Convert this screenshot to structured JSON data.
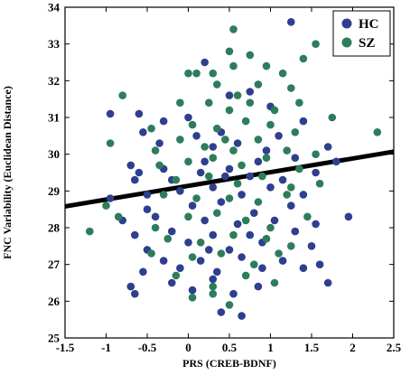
{
  "chart_data": {
    "type": "scatter",
    "title": "",
    "xlabel": "PRS (CREB-BDNF)",
    "ylabel": "FNC Variability (Euclidean Distance)",
    "xlim": [
      -1.5,
      2.5
    ],
    "ylim": [
      25,
      34
    ],
    "xticks": [
      -1.5,
      -1,
      -0.5,
      0,
      0.5,
      1,
      1.5,
      2,
      2.5
    ],
    "xtick_labels": [
      "-1.5",
      "-1",
      "-0.5",
      "0",
      "0.5",
      "1",
      "1.5",
      "2",
      "2.5"
    ],
    "yticks": [
      25,
      26,
      27,
      28,
      29,
      30,
      31,
      32,
      33,
      34
    ],
    "ytick_labels": [
      "25",
      "26",
      "27",
      "28",
      "29",
      "30",
      "31",
      "32",
      "33",
      "34"
    ],
    "grid": false,
    "legend_position": "top-right",
    "fit_line": {
      "x": [
        -1.5,
        2.5
      ],
      "y": [
        28.58,
        30.07
      ],
      "color": "#000000"
    },
    "series": [
      {
        "name": "HC",
        "color": "#2e3f8f",
        "points": [
          [
            1.25,
            33.6
          ],
          [
            -0.95,
            31.1
          ],
          [
            -0.6,
            31.1
          ],
          [
            0.2,
            32.5
          ],
          [
            0.5,
            31.6
          ],
          [
            0.75,
            31.7
          ],
          [
            -0.3,
            30.9
          ],
          [
            0.0,
            31.0
          ],
          [
            0.4,
            30.6
          ],
          [
            1.0,
            31.3
          ],
          [
            1.4,
            30.9
          ],
          [
            -0.55,
            30.6
          ],
          [
            0.1,
            30.5
          ],
          [
            0.6,
            30.3
          ],
          [
            1.1,
            30.5
          ],
          [
            -0.35,
            30.3
          ],
          [
            0.3,
            30.2
          ],
          [
            1.7,
            30.2
          ],
          [
            -0.7,
            29.7
          ],
          [
            -0.3,
            29.6
          ],
          [
            0.2,
            29.8
          ],
          [
            0.5,
            29.6
          ],
          [
            0.85,
            29.8
          ],
          [
            1.3,
            29.9
          ],
          [
            -0.65,
            29.3
          ],
          [
            -0.2,
            29.3
          ],
          [
            0.15,
            29.5
          ],
          [
            0.45,
            29.4
          ],
          [
            0.75,
            29.4
          ],
          [
            1.15,
            29.3
          ],
          [
            1.55,
            29.5
          ],
          [
            -0.95,
            28.8
          ],
          [
            -0.5,
            28.9
          ],
          [
            -0.1,
            29.0
          ],
          [
            0.3,
            29.1
          ],
          [
            0.65,
            28.9
          ],
          [
            1.0,
            29.1
          ],
          [
            1.4,
            28.9
          ],
          [
            -0.5,
            28.5
          ],
          [
            0.05,
            28.6
          ],
          [
            0.4,
            28.7
          ],
          [
            0.8,
            28.4
          ],
          [
            1.25,
            28.6
          ],
          [
            -0.8,
            28.2
          ],
          [
            -0.4,
            28.3
          ],
          [
            0.2,
            28.2
          ],
          [
            0.6,
            28.1
          ],
          [
            1.05,
            28.2
          ],
          [
            1.55,
            28.1
          ],
          [
            -0.65,
            27.8
          ],
          [
            -0.2,
            27.9
          ],
          [
            0.3,
            27.8
          ],
          [
            0.75,
            27.8
          ],
          [
            1.3,
            27.9
          ],
          [
            -0.5,
            27.4
          ],
          [
            0.0,
            27.6
          ],
          [
            0.5,
            27.4
          ],
          [
            0.9,
            27.6
          ],
          [
            1.5,
            27.5
          ],
          [
            -0.3,
            27.1
          ],
          [
            0.15,
            27.1
          ],
          [
            0.65,
            27.2
          ],
          [
            1.15,
            27.1
          ],
          [
            -0.55,
            26.8
          ],
          [
            -0.1,
            26.9
          ],
          [
            0.35,
            26.8
          ],
          [
            0.9,
            26.9
          ],
          [
            1.4,
            26.9
          ],
          [
            -0.7,
            26.4
          ],
          [
            -0.2,
            26.5
          ],
          [
            0.3,
            26.6
          ],
          [
            0.85,
            26.4
          ],
          [
            1.6,
            27.0
          ],
          [
            -0.65,
            26.2
          ],
          [
            0.05,
            26.3
          ],
          [
            0.55,
            26.2
          ],
          [
            1.7,
            26.5
          ],
          [
            0.4,
            25.7
          ],
          [
            0.65,
            25.6
          ],
          [
            1.95,
            28.3
          ],
          [
            1.8,
            29.8
          ],
          [
            -0.6,
            29.5
          ],
          [
            0.95,
            30.1
          ],
          [
            0.25,
            27.4
          ]
        ]
      },
      {
        "name": "SZ",
        "color": "#2e7d5a",
        "points": [
          [
            0.55,
            33.4
          ],
          [
            0.5,
            32.8
          ],
          [
            0.75,
            32.7
          ],
          [
            1.55,
            33.0
          ],
          [
            2.0,
            32.8
          ],
          [
            0.3,
            32.2
          ],
          [
            0.55,
            32.4
          ],
          [
            0.95,
            32.4
          ],
          [
            1.15,
            32.2
          ],
          [
            1.4,
            32.6
          ],
          [
            -0.8,
            31.6
          ],
          [
            0.0,
            32.2
          ],
          [
            0.1,
            32.2
          ],
          [
            0.35,
            31.9
          ],
          [
            0.6,
            31.6
          ],
          [
            0.85,
            31.9
          ],
          [
            1.25,
            31.8
          ],
          [
            -0.1,
            31.4
          ],
          [
            0.25,
            31.4
          ],
          [
            0.5,
            31.2
          ],
          [
            0.75,
            31.4
          ],
          [
            1.05,
            31.2
          ],
          [
            1.35,
            31.4
          ],
          [
            -0.95,
            30.3
          ],
          [
            -0.45,
            30.7
          ],
          [
            0.05,
            30.8
          ],
          [
            0.35,
            30.7
          ],
          [
            0.7,
            30.9
          ],
          [
            1.0,
            30.8
          ],
          [
            1.3,
            30.6
          ],
          [
            -0.4,
            30.1
          ],
          [
            -0.1,
            30.4
          ],
          [
            0.2,
            30.2
          ],
          [
            0.55,
            30.1
          ],
          [
            0.85,
            30.4
          ],
          [
            1.2,
            30.1
          ],
          [
            1.55,
            30.0
          ],
          [
            -0.35,
            29.7
          ],
          [
            0.0,
            29.8
          ],
          [
            0.3,
            29.9
          ],
          [
            0.65,
            29.7
          ],
          [
            0.95,
            29.9
          ],
          [
            1.35,
            29.6
          ],
          [
            -0.15,
            29.3
          ],
          [
            0.25,
            29.4
          ],
          [
            0.6,
            29.2
          ],
          [
            0.9,
            29.4
          ],
          [
            1.25,
            29.1
          ],
          [
            1.6,
            29.2
          ],
          [
            -0.3,
            28.9
          ],
          [
            0.1,
            28.8
          ],
          [
            0.5,
            28.8
          ],
          [
            0.85,
            28.7
          ],
          [
            1.2,
            28.9
          ],
          [
            -0.85,
            28.3
          ],
          [
            -0.4,
            28.0
          ],
          [
            0.0,
            28.3
          ],
          [
            0.35,
            28.4
          ],
          [
            0.7,
            28.2
          ],
          [
            1.0,
            28.0
          ],
          [
            1.45,
            28.3
          ],
          [
            -0.25,
            27.7
          ],
          [
            0.15,
            27.6
          ],
          [
            0.55,
            27.8
          ],
          [
            0.95,
            27.7
          ],
          [
            1.25,
            27.5
          ],
          [
            -0.45,
            27.3
          ],
          [
            0.05,
            27.2
          ],
          [
            0.4,
            27.3
          ],
          [
            0.8,
            27.0
          ],
          [
            1.1,
            27.3
          ],
          [
            -0.15,
            26.7
          ],
          [
            0.3,
            26.4
          ],
          [
            0.7,
            26.7
          ],
          [
            1.05,
            26.5
          ],
          [
            0.05,
            26.1
          ],
          [
            0.5,
            25.9
          ],
          [
            0.3,
            26.2
          ],
          [
            -1.2,
            27.9
          ],
          [
            2.3,
            30.6
          ],
          [
            -1.0,
            28.6
          ],
          [
            1.75,
            31.0
          ],
          [
            0.45,
            30.4
          ]
        ]
      }
    ]
  }
}
